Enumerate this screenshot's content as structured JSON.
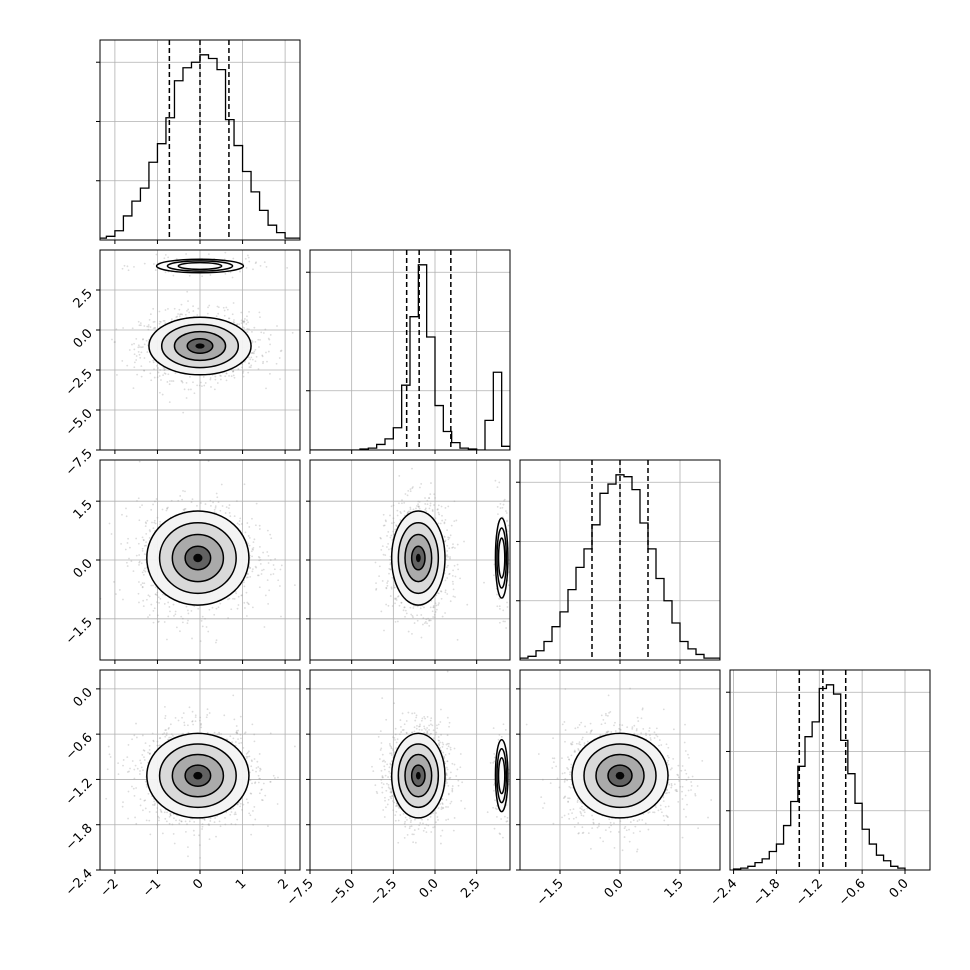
{
  "chart_data": [
    {
      "type": "histogram",
      "panel": "0-0",
      "quantiles": [
        -0.72,
        0.0,
        0.68
      ],
      "x_ticks": [
        -2,
        -1,
        0,
        1,
        2
      ],
      "x_tick_labels": [
        "",
        "",
        "",
        "",
        ""
      ],
      "bin_edges": [
        -2.4,
        -2.2,
        -2.0,
        -1.8,
        -1.6,
        -1.4,
        -1.2,
        -1.0,
        -0.8,
        -0.6,
        -0.4,
        -0.2,
        0.0,
        0.2,
        0.4,
        0.6,
        0.8,
        1.0,
        1.2,
        1.4,
        1.6,
        1.8,
        2.0,
        2.2,
        2.4
      ],
      "counts": [
        0.01,
        0.02,
        0.05,
        0.13,
        0.21,
        0.28,
        0.42,
        0.52,
        0.66,
        0.86,
        0.93,
        0.96,
        1.0,
        0.98,
        0.92,
        0.65,
        0.51,
        0.37,
        0.26,
        0.16,
        0.08,
        0.04,
        0.01,
        0.01
      ]
    },
    {
      "type": "scatter_density",
      "panel": "1-0",
      "x_ticks": [
        -2,
        -1,
        0,
        1,
        2
      ],
      "x_tick_labels": [
        "",
        "",
        "",
        "",
        ""
      ],
      "y_ticks": [
        2.5,
        0.0,
        -2.5,
        -5.0,
        -7.5
      ],
      "y_tick_labels": [
        "2.5",
        "0.0",
        "−2.5",
        "−5.0",
        "−7.5"
      ],
      "modes": [
        {
          "x": 0.0,
          "y": -1.0,
          "sx": 0.6,
          "sy": 0.9,
          "w": 0.9
        },
        {
          "x": 0.0,
          "y": 4.0,
          "sx": 0.6,
          "sy": 0.25,
          "w": 0.1
        }
      ]
    },
    {
      "type": "histogram",
      "panel": "1-1",
      "quantiles": [
        -1.7,
        -0.95,
        0.95
      ],
      "x_ticks": [
        -7.5,
        -5.0,
        -2.5,
        0.0,
        2.5
      ],
      "x_tick_labels": [
        "",
        "",
        "",
        "",
        ""
      ],
      "bin_edges": [
        -7.5,
        -7.0,
        -6.5,
        -6.0,
        -5.5,
        -5.0,
        -4.5,
        -4.0,
        -3.5,
        -3.0,
        -2.5,
        -2.0,
        -1.5,
        -1.0,
        -0.5,
        0.0,
        0.5,
        1.0,
        1.5,
        2.0,
        2.5,
        3.0,
        3.5,
        4.0,
        4.5
      ],
      "counts": [
        0,
        0,
        0,
        0,
        0,
        0,
        0.005,
        0.01,
        0.03,
        0.06,
        0.12,
        0.35,
        0.72,
        1.0,
        0.61,
        0.24,
        0.1,
        0.04,
        0.01,
        0.005,
        0,
        0.16,
        0.42,
        0.02
      ]
    },
    {
      "type": "scatter_density",
      "panel": "2-0",
      "x_ticks": [
        -2,
        -1,
        0,
        1,
        2
      ],
      "x_tick_labels": [
        "",
        "",
        "",
        "",
        ""
      ],
      "y_ticks": [
        1.5,
        0.0,
        -1.5
      ],
      "y_tick_labels": [
        "1.5",
        "0.0",
        "−1.5"
      ],
      "modes": [
        {
          "x": -0.05,
          "y": 0.05,
          "sx": 0.6,
          "sy": 0.6,
          "w": 1.0
        }
      ]
    },
    {
      "type": "scatter_density",
      "panel": "2-1",
      "x_ticks": [
        -7.5,
        -5.0,
        -2.5,
        0.0,
        2.5
      ],
      "x_tick_labels": [
        "",
        "",
        "",
        "",
        ""
      ],
      "y_ticks": [
        1.5,
        0.0,
        -1.5
      ],
      "y_tick_labels": [
        "",
        "",
        ""
      ],
      "modes": [
        {
          "x": -1.0,
          "y": 0.05,
          "sx": 0.8,
          "sy": 0.6,
          "w": 0.9
        },
        {
          "x": 4.0,
          "y": 0.05,
          "sx": 0.22,
          "sy": 0.6,
          "w": 0.1
        }
      ]
    },
    {
      "type": "histogram",
      "panel": "2-2",
      "quantiles": [
        -0.7,
        0.0,
        0.7
      ],
      "x_ticks": [
        -1.5,
        0.0,
        1.5
      ],
      "x_tick_labels": [
        "",
        "",
        ""
      ],
      "bin_edges": [
        -2.5,
        -2.3,
        -2.1,
        -1.9,
        -1.7,
        -1.5,
        -1.3,
        -1.1,
        -0.9,
        -0.7,
        -0.5,
        -0.3,
        -0.1,
        0.1,
        0.3,
        0.5,
        0.7,
        0.9,
        1.1,
        1.3,
        1.5,
        1.7,
        1.9,
        2.1,
        2.3,
        2.5
      ],
      "counts": [
        0.01,
        0.02,
        0.05,
        0.1,
        0.18,
        0.26,
        0.38,
        0.5,
        0.6,
        0.73,
        0.9,
        0.95,
        1.0,
        0.99,
        0.92,
        0.74,
        0.6,
        0.44,
        0.32,
        0.2,
        0.1,
        0.06,
        0.03,
        0.01,
        0.01
      ]
    },
    {
      "type": "scatter_density",
      "panel": "3-0",
      "x_ticks": [
        -2,
        -1,
        0,
        1,
        2
      ],
      "x_tick_labels": [
        "−2",
        "−1",
        "0",
        "1",
        "2"
      ],
      "y_ticks": [
        0.0,
        -0.6,
        -1.2,
        -1.8,
        -2.4
      ],
      "y_tick_labels": [
        "0.0",
        "−0.6",
        "−1.2",
        "−1.8",
        "−2.4"
      ],
      "modes": [
        {
          "x": -0.05,
          "y": -1.15,
          "sx": 0.6,
          "sy": 0.28,
          "w": 1.0
        }
      ]
    },
    {
      "type": "scatter_density",
      "panel": "3-1",
      "x_ticks": [
        -7.5,
        -5.0,
        -2.5,
        0.0,
        2.5
      ],
      "x_tick_labels": [
        "−7.5",
        "−5.0",
        "−2.5",
        "0.0",
        "2.5"
      ],
      "y_ticks": [
        0.0,
        -0.6,
        -1.2,
        -1.8,
        -2.4
      ],
      "y_tick_labels": [
        "",
        "",
        "",
        "",
        ""
      ],
      "modes": [
        {
          "x": -1.0,
          "y": -1.15,
          "sx": 0.8,
          "sy": 0.28,
          "w": 0.9
        },
        {
          "x": 4.0,
          "y": -1.15,
          "sx": 0.22,
          "sy": 0.28,
          "w": 0.1
        }
      ]
    },
    {
      "type": "scatter_density",
      "panel": "3-2",
      "x_ticks": [
        -1.5,
        0.0,
        1.5
      ],
      "x_tick_labels": [
        "−1.5",
        "0.0",
        "1.5"
      ],
      "y_ticks": [
        0.0,
        -0.6,
        -1.2,
        -1.8,
        -2.4
      ],
      "y_tick_labels": [
        "",
        "",
        "",
        "",
        ""
      ],
      "modes": [
        {
          "x": 0.0,
          "y": -1.15,
          "sx": 0.6,
          "sy": 0.28,
          "w": 1.0
        }
      ]
    },
    {
      "type": "histogram",
      "panel": "3-3",
      "quantiles": [
        -1.48,
        -1.15,
        -0.83
      ],
      "x_ticks": [
        -2.4,
        -1.8,
        -1.2,
        -0.6,
        0.0
      ],
      "x_tick_labels": [
        "−2.4",
        "−1.8",
        "−1.2",
        "−0.6",
        "0.0"
      ],
      "bin_edges": [
        -2.4,
        -2.3,
        -2.2,
        -2.1,
        -2.0,
        -1.9,
        -1.8,
        -1.7,
        -1.6,
        -1.5,
        -1.4,
        -1.3,
        -1.2,
        -1.1,
        -1.0,
        -0.9,
        -0.8,
        -0.7,
        -0.6,
        -0.5,
        -0.4,
        -0.3,
        -0.2,
        -0.1,
        0.0
      ],
      "counts": [
        0.005,
        0.01,
        0.02,
        0.04,
        0.06,
        0.1,
        0.14,
        0.24,
        0.37,
        0.56,
        0.72,
        0.8,
        0.98,
        1.0,
        0.95,
        0.7,
        0.52,
        0.36,
        0.22,
        0.14,
        0.08,
        0.05,
        0.02,
        0.01
      ]
    }
  ]
}
